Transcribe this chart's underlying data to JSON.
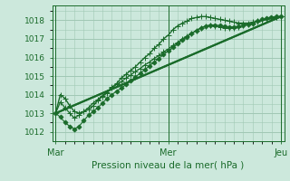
{
  "bg_color": "#cce8dc",
  "grid_color": "#a0c8b4",
  "line_color": "#1a6b2a",
  "title": "Pression niveau de la mer( hPa )",
  "xlabel_ticks": [
    "Mar",
    "Mer",
    "Jeu"
  ],
  "xlabel_tick_positions": [
    0.0,
    0.5,
    1.0
  ],
  "ylim": [
    1011.5,
    1018.8
  ],
  "yticks": [
    1012,
    1013,
    1014,
    1015,
    1016,
    1017,
    1018
  ],
  "series": [
    {
      "x": [
        0.0,
        0.021,
        0.042,
        0.063,
        0.083,
        0.104,
        0.125,
        0.146,
        0.167,
        0.188,
        0.208,
        0.229,
        0.25,
        0.271,
        0.292,
        0.313,
        0.333,
        0.354,
        0.375,
        0.396,
        0.417,
        0.438,
        0.458,
        0.479,
        0.5,
        0.521,
        0.542,
        0.563,
        0.583,
        0.604,
        0.625,
        0.646,
        0.667,
        0.688,
        0.708,
        0.729,
        0.75,
        0.771,
        0.792,
        0.813,
        0.833,
        0.854,
        0.875,
        0.896,
        0.917,
        0.938,
        0.958,
        0.979,
        1.0
      ],
      "y": [
        1013.0,
        1014.0,
        1013.8,
        1013.4,
        1013.1,
        1013.0,
        1013.1,
        1013.2,
        1013.4,
        1013.7,
        1013.9,
        1014.1,
        1014.4,
        1014.6,
        1014.9,
        1015.1,
        1015.3,
        1015.5,
        1015.75,
        1016.0,
        1016.2,
        1016.5,
        1016.7,
        1017.0,
        1017.2,
        1017.5,
        1017.7,
        1017.85,
        1017.95,
        1018.1,
        1018.15,
        1018.2,
        1018.2,
        1018.15,
        1018.1,
        1018.05,
        1018.0,
        1017.95,
        1017.9,
        1017.85,
        1017.85,
        1017.85,
        1017.9,
        1017.95,
        1018.0,
        1018.05,
        1018.1,
        1018.15,
        1018.2
      ],
      "marker": "+",
      "ms": 4,
      "lw": 1.0
    },
    {
      "x": [
        0.0,
        0.021,
        0.042,
        0.063,
        0.083,
        0.104,
        0.125,
        0.146,
        0.167,
        0.188,
        0.208,
        0.229,
        0.25,
        0.271,
        0.292,
        0.313,
        0.333,
        0.354,
        0.375,
        0.396,
        0.417,
        0.438,
        0.458,
        0.479,
        0.5,
        0.521,
        0.542,
        0.563,
        0.583,
        0.604,
        0.625,
        0.646,
        0.667,
        0.688,
        0.708,
        0.729,
        0.75,
        0.771,
        0.792,
        0.813,
        0.833,
        0.854,
        0.875,
        0.896,
        0.917,
        0.938,
        0.958,
        0.979,
        1.0
      ],
      "y": [
        1013.0,
        1012.8,
        1012.5,
        1012.3,
        1012.15,
        1012.3,
        1012.6,
        1012.9,
        1013.1,
        1013.3,
        1013.55,
        1013.8,
        1014.0,
        1014.2,
        1014.35,
        1014.55,
        1014.75,
        1014.95,
        1015.15,
        1015.35,
        1015.55,
        1015.75,
        1015.95,
        1016.15,
        1016.35,
        1016.55,
        1016.75,
        1016.95,
        1017.1,
        1017.3,
        1017.45,
        1017.6,
        1017.7,
        1017.75,
        1017.75,
        1017.72,
        1017.68,
        1017.65,
        1017.65,
        1017.68,
        1017.72,
        1017.78,
        1017.85,
        1017.95,
        1018.05,
        1018.12,
        1018.18,
        1018.2,
        1018.2
      ],
      "marker": "D",
      "ms": 2.5,
      "lw": 0.8
    },
    {
      "x": [
        0.0,
        1.0
      ],
      "y": [
        1013.0,
        1018.2
      ],
      "marker": null,
      "ms": 0,
      "lw": 1.5
    },
    {
      "x": [
        0.0,
        0.021,
        0.042,
        0.063,
        0.083,
        0.104,
        0.125,
        0.146,
        0.167,
        0.188,
        0.208,
        0.229,
        0.25,
        0.271,
        0.292,
        0.313,
        0.333,
        0.354,
        0.375,
        0.396,
        0.417,
        0.438,
        0.458,
        0.479,
        0.5,
        0.521,
        0.542,
        0.563,
        0.583,
        0.604,
        0.625,
        0.646,
        0.667,
        0.688,
        0.708,
        0.729,
        0.75,
        0.771,
        0.792,
        0.813,
        0.833,
        0.854,
        0.875,
        0.896,
        0.917,
        0.938,
        0.958,
        0.979,
        1.0
      ],
      "y": [
        1013.0,
        1013.6,
        1013.3,
        1013.0,
        1012.75,
        1012.9,
        1013.1,
        1013.3,
        1013.55,
        1013.75,
        1013.95,
        1014.15,
        1014.35,
        1014.55,
        1014.7,
        1014.9,
        1015.05,
        1015.25,
        1015.4,
        1015.6,
        1015.75,
        1015.95,
        1016.1,
        1016.3,
        1016.45,
        1016.65,
        1016.8,
        1017.0,
        1017.15,
        1017.3,
        1017.45,
        1017.6,
        1017.68,
        1017.72,
        1017.7,
        1017.65,
        1017.6,
        1017.58,
        1017.6,
        1017.65,
        1017.72,
        1017.78,
        1017.85,
        1017.93,
        1018.0,
        1018.07,
        1018.12,
        1018.17,
        1018.2
      ],
      "marker": "+",
      "ms": 4,
      "lw": 0.9
    },
    {
      "x": [
        0.0,
        1.0
      ],
      "y": [
        1013.0,
        1018.2
      ],
      "marker": null,
      "ms": 0,
      "lw": 1.5
    }
  ]
}
